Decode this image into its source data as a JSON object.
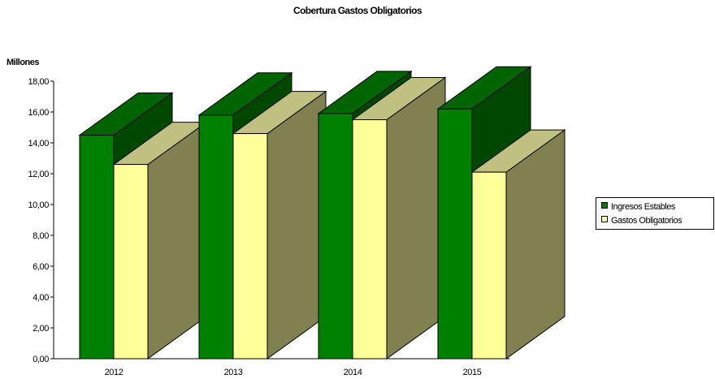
{
  "chart_data": {
    "type": "bar",
    "title": "Cobertura Gastos Obligatorios",
    "ylabel": "Millones",
    "categories": [
      "2012",
      "2013",
      "2014",
      "2015"
    ],
    "series": [
      {
        "name": "Ingresos Estables",
        "values": [
          14.5,
          15.8,
          15.9,
          16.2
        ]
      },
      {
        "name": "Gastos Obligatorios",
        "values": [
          12.6,
          14.6,
          15.5,
          12.1
        ]
      }
    ],
    "ylim": [
      0,
      18
    ],
    "yticks": [
      "0,00",
      "2,00",
      "4,00",
      "6,00",
      "8,00",
      "10,00",
      "12,00",
      "14,00",
      "16,00",
      "18,00"
    ],
    "grid": false,
    "legend_position": "right",
    "colors": {
      "Ingresos Estables": {
        "front": "#008000",
        "top": "#006400",
        "side": "#004800"
      },
      "Gastos Obligatorios": {
        "front": "#ffff99",
        "top": "#c0c080",
        "side": "#808050"
      }
    }
  }
}
